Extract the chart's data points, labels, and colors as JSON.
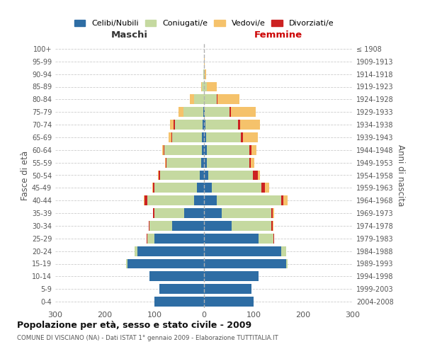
{
  "age_groups": [
    "0-4",
    "5-9",
    "10-14",
    "15-19",
    "20-24",
    "25-29",
    "30-34",
    "35-39",
    "40-44",
    "45-49",
    "50-54",
    "55-59",
    "60-64",
    "65-69",
    "70-74",
    "75-79",
    "80-84",
    "85-89",
    "90-94",
    "95-99",
    "100+"
  ],
  "birth_years": [
    "2004-2008",
    "1999-2003",
    "1994-1998",
    "1989-1993",
    "1984-1988",
    "1979-1983",
    "1974-1978",
    "1969-1973",
    "1964-1968",
    "1959-1963",
    "1954-1958",
    "1949-1953",
    "1944-1948",
    "1939-1943",
    "1934-1938",
    "1929-1933",
    "1924-1928",
    "1919-1923",
    "1914-1918",
    "1909-1913",
    "≤ 1908"
  ],
  "colors": {
    "celibe": "#2E6DA4",
    "coniugato": "#C5D9A0",
    "vedovo": "#F5C26B",
    "divorziato": "#CC2222"
  },
  "males": {
    "celibe": [
      100,
      90,
      110,
      155,
      135,
      100,
      65,
      40,
      20,
      15,
      8,
      6,
      5,
      4,
      3,
      2,
      0,
      0,
      0,
      0,
      0
    ],
    "coniugato": [
      0,
      0,
      0,
      2,
      5,
      15,
      45,
      60,
      95,
      85,
      80,
      70,
      75,
      60,
      55,
      40,
      20,
      4,
      1,
      0,
      0
    ],
    "vedovo": [
      0,
      0,
      0,
      0,
      0,
      0,
      0,
      0,
      1,
      1,
      2,
      2,
      3,
      5,
      8,
      10,
      8,
      2,
      0,
      0,
      0
    ],
    "divorziato": [
      0,
      0,
      0,
      0,
      0,
      1,
      2,
      3,
      5,
      3,
      3,
      1,
      2,
      2,
      3,
      0,
      0,
      0,
      0,
      0,
      0
    ]
  },
  "females": {
    "nubile": [
      100,
      95,
      110,
      165,
      155,
      110,
      55,
      35,
      25,
      15,
      8,
      6,
      6,
      4,
      3,
      2,
      0,
      0,
      0,
      0,
      0
    ],
    "coniugata": [
      0,
      0,
      0,
      3,
      10,
      30,
      80,
      100,
      130,
      100,
      90,
      85,
      85,
      70,
      65,
      50,
      25,
      5,
      1,
      0,
      0
    ],
    "vedova": [
      0,
      0,
      0,
      0,
      0,
      0,
      2,
      3,
      8,
      8,
      5,
      8,
      10,
      30,
      40,
      50,
      45,
      20,
      3,
      1,
      0
    ],
    "divorziata": [
      0,
      0,
      0,
      0,
      1,
      1,
      3,
      4,
      5,
      8,
      10,
      3,
      5,
      5,
      5,
      2,
      2,
      0,
      0,
      0,
      0
    ]
  },
  "title": "Popolazione per età, sesso e stato civile - 2009",
  "subtitle": "COMUNE DI VISCIANO (NA) - Dati ISTAT 1° gennaio 2009 - Elaborazione TUTTITALIA.IT",
  "xlabel_left": "Maschi",
  "xlabel_right": "Femmine",
  "ylabel_left": "Fasce di età",
  "ylabel_right": "Anni di nascita",
  "xlim": 300,
  "legend_labels": [
    "Celibi/Nubili",
    "Coniugati/e",
    "Vedovi/e",
    "Divorziati/e"
  ],
  "bg_color": "#ffffff",
  "grid_color": "#cccccc"
}
